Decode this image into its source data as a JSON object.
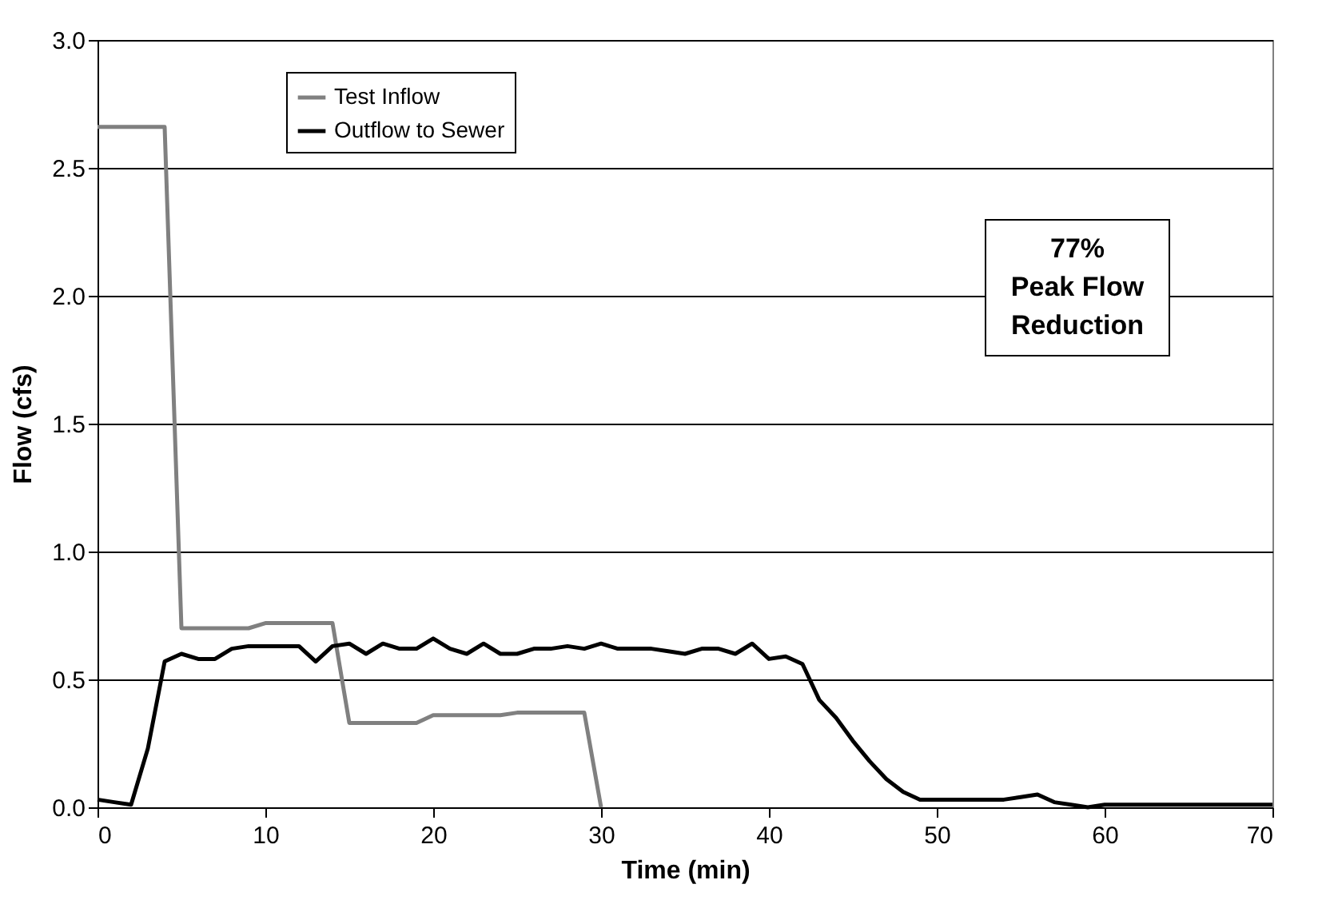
{
  "chart_data": {
    "type": "line",
    "xlabel": "Time (min)",
    "ylabel": "Flow (cfs)",
    "annotations": [
      "77%\nPeak Flow\nReduction"
    ],
    "series": [
      {
        "name": "Test Inflow",
        "color": "#808080",
        "x": [
          0,
          4,
          5,
          9,
          10,
          14,
          15,
          19,
          20,
          24,
          25,
          29,
          30
        ],
        "values": [
          2.66,
          2.66,
          0.7,
          0.7,
          0.72,
          0.72,
          0.33,
          0.33,
          0.36,
          0.36,
          0.37,
          0.37,
          0
        ]
      },
      {
        "name": "Outflow to Sewer",
        "color": "#000000",
        "x": [
          0,
          1,
          2,
          3,
          4,
          5,
          6,
          7,
          8,
          9,
          10,
          11,
          12,
          13,
          14,
          15,
          16,
          17,
          18,
          19,
          20,
          21,
          22,
          23,
          24,
          25,
          26,
          27,
          28,
          29,
          30,
          31,
          32,
          33,
          34,
          35,
          36,
          37,
          38,
          39,
          40,
          41,
          42,
          43,
          44,
          45,
          46,
          47,
          48,
          49,
          50,
          51,
          52,
          53,
          54,
          55,
          56,
          57,
          58,
          59,
          60,
          61,
          62,
          63,
          64,
          65,
          66,
          67,
          68,
          69,
          70
        ],
        "values": [
          0.03,
          0.02,
          0.01,
          0.23,
          0.57,
          0.6,
          0.58,
          0.58,
          0.62,
          0.63,
          0.63,
          0.63,
          0.63,
          0.57,
          0.63,
          0.64,
          0.6,
          0.64,
          0.62,
          0.62,
          0.66,
          0.62,
          0.6,
          0.64,
          0.6,
          0.6,
          0.62,
          0.62,
          0.63,
          0.62,
          0.64,
          0.62,
          0.62,
          0.62,
          0.61,
          0.6,
          0.62,
          0.62,
          0.6,
          0.64,
          0.58,
          0.59,
          0.56,
          0.42,
          0.35,
          0.26,
          0.18,
          0.11,
          0.06,
          0.03,
          0.03,
          0.03,
          0.03,
          0.03,
          0.03,
          0.04,
          0.05,
          0.02,
          0.01,
          0.0,
          0.01,
          0.01,
          0.01,
          0.01,
          0.01,
          0.01,
          0.01,
          0.01,
          0.01,
          0.01,
          0.01
        ]
      }
    ],
    "xlim": [
      0,
      70
    ],
    "xticks": [
      0,
      10,
      20,
      30,
      40,
      50,
      60,
      70
    ],
    "ylim": [
      0,
      3
    ],
    "yticks": [
      {
        "value": 0,
        "label": "0.0"
      },
      {
        "value": 0.5,
        "label": "0.5"
      },
      {
        "value": 1,
        "label": "1.0"
      },
      {
        "value": 1.5,
        "label": "1.5"
      },
      {
        "value": 2,
        "label": "2.0"
      },
      {
        "value": 2.5,
        "label": "2.5"
      },
      {
        "value": 3,
        "label": "3.0"
      }
    ],
    "grid": "y",
    "legend": "top left",
    "marker": "none",
    "line_style": "solid"
  }
}
